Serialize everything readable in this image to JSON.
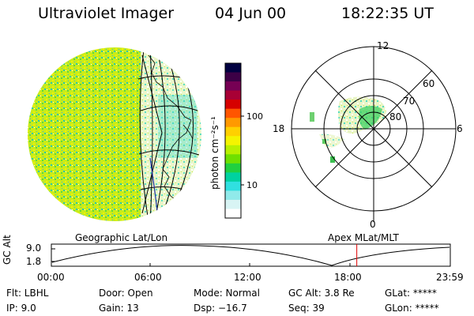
{
  "header": {
    "instrument": "Ultraviolet Imager",
    "date": "04 Jun 00",
    "time": "18:22:35 UT"
  },
  "colorbar": {
    "label": "photon cm⁻²s⁻¹",
    "ticks": [
      "100",
      "10"
    ],
    "colors": [
      "#000040",
      "#3c0046",
      "#760054",
      "#a80035",
      "#d60000",
      "#ff5500",
      "#ff9900",
      "#ffd000",
      "#f4f400",
      "#b8f000",
      "#6ee000",
      "#20d040",
      "#00d2a0",
      "#30e0e0",
      "#90eaea",
      "#d8f4f4",
      "#ffffff"
    ]
  },
  "polar": {
    "mlt_labels": {
      "top": "12",
      "left": "18",
      "right": "6",
      "bottom": "0"
    },
    "lat_labels": [
      "60",
      "70",
      "80"
    ]
  },
  "panels": {
    "left_label": "Geographic Lat/Lon",
    "right_label": "Apex MLat/MLT"
  },
  "timeline": {
    "axis_title": "GC Alt",
    "y_ticks": [
      "9.0",
      "1.8"
    ],
    "x_ticks": [
      "00:00",
      "06:00",
      "12:00",
      "18:00",
      "23:59"
    ],
    "current_time_fraction": 0.7656
  },
  "info": {
    "row1": [
      "Flt: LBHL",
      "Door: Open",
      "Mode: Normal",
      "GC Alt: 3.8 Re",
      "GLat: *****"
    ],
    "row2": [
      "IP:  9.0",
      "Gain: 13",
      "Dsp:  −16.7",
      "Seq: 39",
      "GLon: *****"
    ]
  }
}
